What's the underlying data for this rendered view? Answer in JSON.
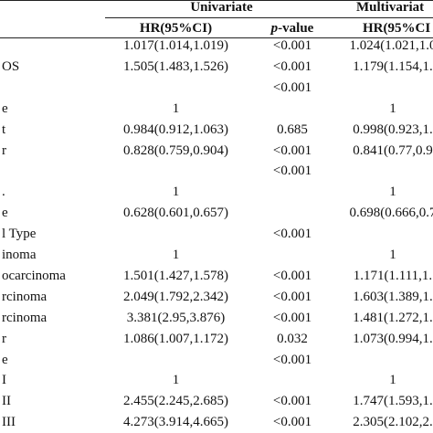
{
  "table": {
    "group_univariate": "Univariate",
    "group_multivariate": "Multivariat",
    "col_hr": "HR(95%CI)",
    "col_p": "p-value",
    "col_hr_multi": "HR(95%CI",
    "rows": [
      [
        null,
        "1.017(1.014,1.019)",
        "<0.001",
        "1.024(1.021,1.0"
      ],
      [
        "OS",
        "1.505(1.483,1.526)",
        "<0.001",
        "1.179(1.154,1."
      ],
      [
        null,
        null,
        "<0.001",
        null
      ],
      [
        "e",
        "1",
        null,
        "1"
      ],
      [
        "t",
        "0.984(0.912,1.063)",
        "0.685",
        "0.998(0.923,1."
      ],
      [
        "r",
        "0.828(0.759,0.904)",
        "<0.001",
        "0.841(0.77,0.9"
      ],
      [
        null,
        null,
        "<0.001",
        null
      ],
      [
        ".",
        "1",
        null,
        "1"
      ],
      [
        "e",
        "0.628(0.601,0.657)",
        null,
        "0.698(0.666,0.7"
      ],
      [
        "l Type",
        null,
        "<0.001",
        null
      ],
      [
        "inoma",
        "1",
        null,
        "1"
      ],
      [
        "ocarcinoma",
        "1.501(1.427,1.578)",
        "<0.001",
        "1.171(1.111,1."
      ],
      [
        "rcinoma",
        "2.049(1.792,2.342)",
        "<0.001",
        "1.603(1.389,1."
      ],
      [
        "rcinoma",
        "3.381(2.95,3.876)",
        "<0.001",
        "1.481(1.272,1."
      ],
      [
        "r",
        "1.086(1.007,1.172)",
        "0.032",
        "1.073(0.994,1."
      ],
      [
        "e",
        null,
        "<0.001",
        null
      ],
      [
        "I",
        "1",
        null,
        "1"
      ],
      [
        "II",
        "2.455(2.245,2.685)",
        "<0.001",
        "1.747(1.593,1."
      ],
      [
        "III",
        "4.273(3.914,4.665)",
        "<0.001",
        "2.305(2.102,2."
      ]
    ]
  }
}
